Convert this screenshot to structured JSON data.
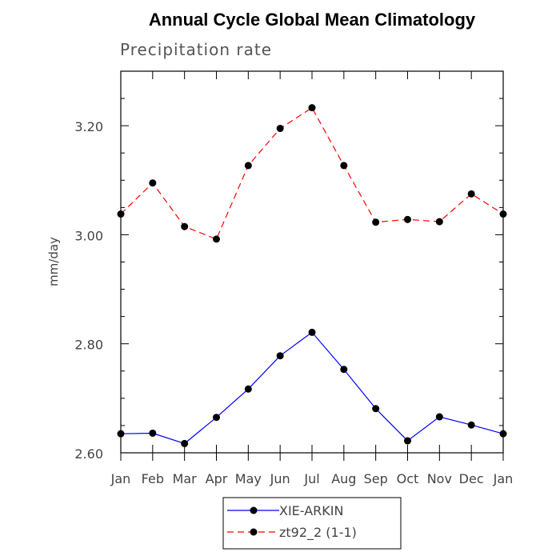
{
  "chart_data": {
    "type": "line",
    "title": "Annual Cycle Global Mean Climatology",
    "subtitle": "Precipitation rate",
    "xlabel": "",
    "ylabel": "mm/day",
    "categories": [
      "Jan",
      "Feb",
      "Mar",
      "Apr",
      "May",
      "Jun",
      "Jul",
      "Aug",
      "Sep",
      "Oct",
      "Nov",
      "Dec",
      "Jan"
    ],
    "ylim": [
      2.6,
      3.3
    ],
    "yticks": [
      2.6,
      2.8,
      3.0,
      3.2
    ],
    "ytick_labels": [
      "2.60",
      "2.80",
      "3.00",
      "3.20"
    ],
    "grid": false,
    "legend_position": "bottom-center",
    "series": [
      {
        "name": "XIE-ARKIN",
        "color": "#0000ff",
        "line_style": "solid",
        "marker": "filled-circle",
        "values": [
          2.635,
          2.636,
          2.617,
          2.665,
          2.717,
          2.778,
          2.821,
          2.753,
          2.681,
          2.622,
          2.666,
          2.651,
          2.635
        ]
      },
      {
        "name": "zt92_2 (1-1)",
        "color": "#ff0000",
        "line_style": "dashed",
        "marker": "filled-circle",
        "values": [
          3.038,
          3.095,
          3.015,
          2.992,
          3.127,
          3.195,
          3.233,
          3.127,
          3.023,
          3.028,
          3.024,
          3.075,
          3.038
        ]
      }
    ]
  }
}
